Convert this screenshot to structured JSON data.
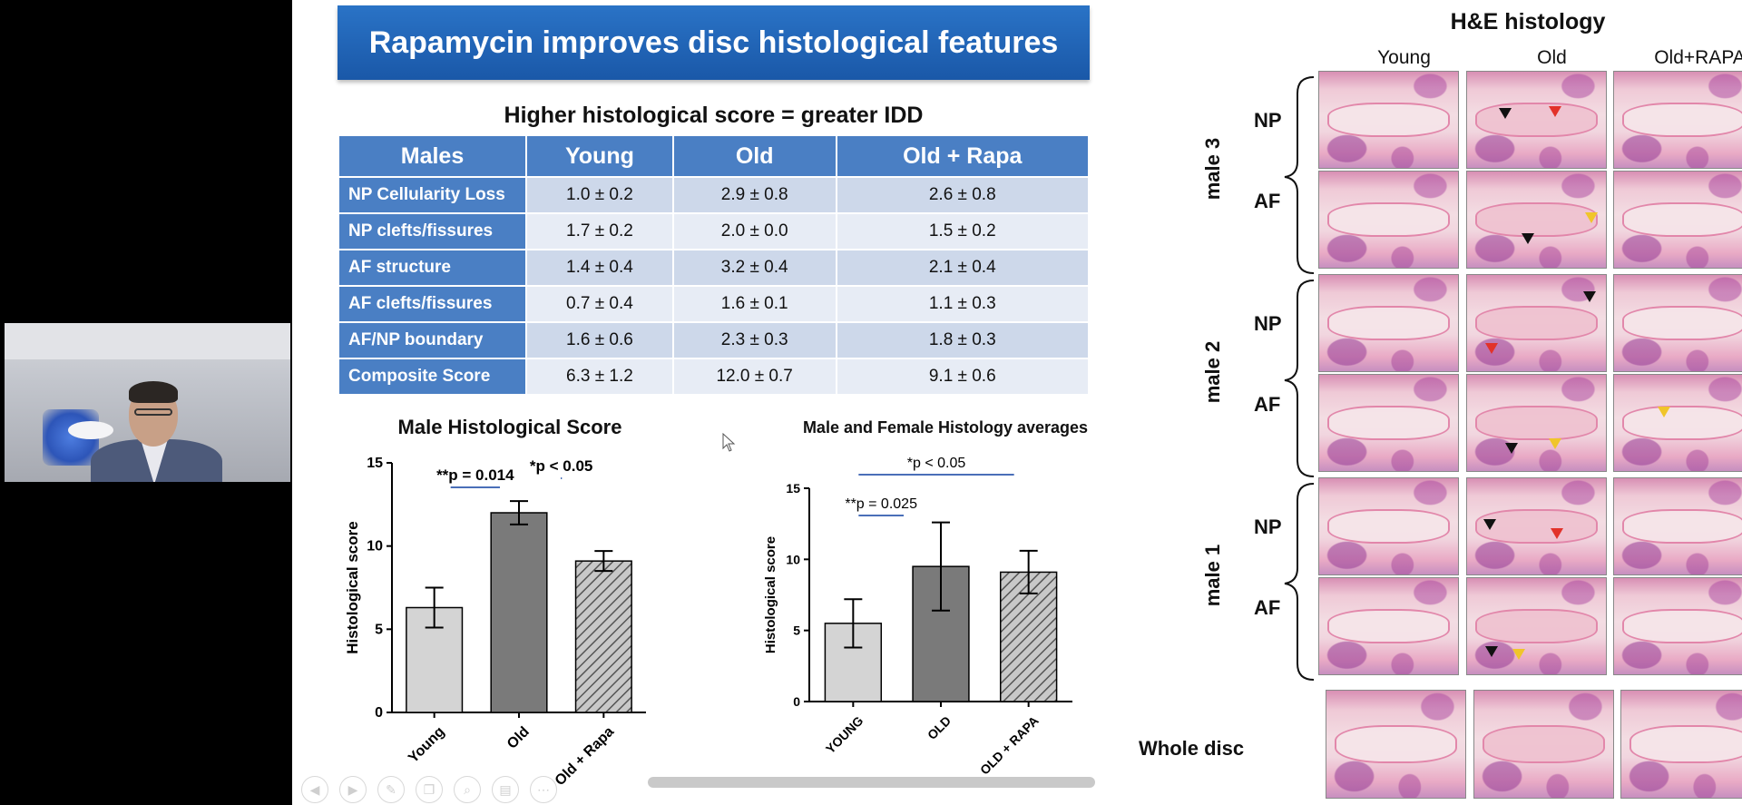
{
  "slide": {
    "title": "Rapamycin improves disc histological features",
    "table_title": "Higher histological score = greater IDD",
    "table": {
      "headers": [
        "Males",
        "Young",
        "Old",
        "Old + Rapa"
      ],
      "rows": [
        {
          "label": "NP Cellularity Loss",
          "values": [
            "1.0 ± 0.2",
            "2.9 ± 0.8",
            "2.6 ± 0.8"
          ]
        },
        {
          "label": "NP clefts/fissures",
          "values": [
            "1.7 ± 0.2",
            "2.0 ± 0.0",
            "1.5 ± 0.2"
          ]
        },
        {
          "label": "AF structure",
          "values": [
            "1.4 ± 0.4",
            "3.2 ± 0.4",
            "2.1 ± 0.4"
          ]
        },
        {
          "label": "AF clefts/fissures",
          "values": [
            "0.7 ± 0.4",
            "1.6 ± 0.1",
            "1.1 ± 0.3"
          ]
        },
        {
          "label": "AF/NP boundary",
          "values": [
            "1.6 ± 0.6",
            "2.3 ± 0.3",
            "1.8 ± 0.3"
          ]
        },
        {
          "label": "Composite Score",
          "values": [
            "6.3 ± 1.2",
            "12.0 ± 0.7",
            "9.1 ± 0.6"
          ]
        }
      ]
    },
    "histology": {
      "title": "H&E histology",
      "columns": [
        "Young",
        "Old",
        "Old+RAPA"
      ],
      "groups": [
        "male 3",
        "male 2",
        "male 1"
      ],
      "layers": [
        "NP",
        "AF"
      ],
      "whole_disc_label": "Whole disc"
    }
  },
  "chart_data": [
    {
      "type": "bar",
      "title": "Male Histological Score",
      "ylabel": "Histological score",
      "categories": [
        "Young",
        "Old",
        "Old + Rapa"
      ],
      "values": [
        6.3,
        12.0,
        9.1
      ],
      "errors": [
        1.2,
        0.7,
        0.6
      ],
      "ylim": [
        0,
        15
      ],
      "yticks": [
        0,
        5,
        10,
        15
      ],
      "colors": [
        "#d4d4d4",
        "#7a7a7a",
        "#b8b8b8"
      ],
      "hatched": [
        false,
        false,
        true
      ],
      "annotations": [
        {
          "text": "**p = 0.014",
          "from": 0,
          "to": 1
        },
        {
          "text": "*p < 0.05",
          "from": 1,
          "to": 2
        }
      ]
    },
    {
      "type": "bar",
      "title": "Male and Female Histology averages",
      "ylabel": "Histological score",
      "categories": [
        "YOUNG",
        "OLD",
        "OLD + RAPA"
      ],
      "values": [
        5.5,
        9.5,
        9.1
      ],
      "errors": [
        1.7,
        3.1,
        1.5
      ],
      "ylim": [
        0,
        15
      ],
      "yticks": [
        0,
        5,
        10,
        15
      ],
      "colors": [
        "#d4d4d4",
        "#7a7a7a",
        "#b8b8b8"
      ],
      "hatched": [
        false,
        false,
        true
      ],
      "annotations": [
        {
          "text": "**p = 0.025",
          "from": 0,
          "to": 1
        },
        {
          "text": "*p < 0.05",
          "from": 0,
          "to": 2
        }
      ]
    }
  ],
  "nav_icons": [
    "prev-icon",
    "next-icon",
    "pen-icon",
    "copy-icon",
    "zoom-icon",
    "slides-icon",
    "more-icon"
  ]
}
